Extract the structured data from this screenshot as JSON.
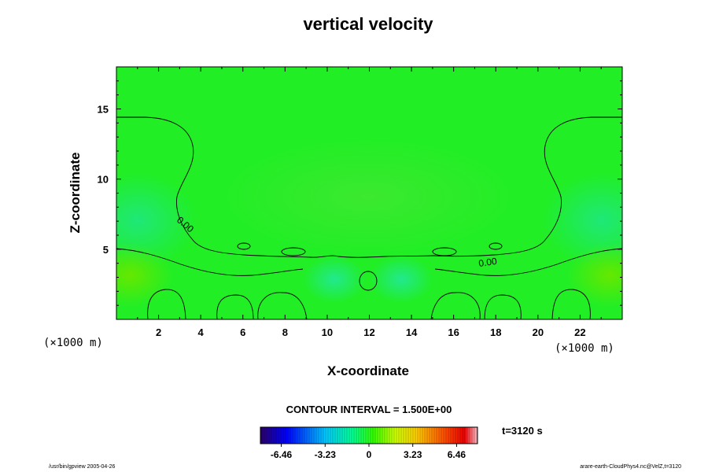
{
  "chart_data": {
    "type": "heatmap",
    "title": "vertical velocity",
    "xlabel": "X-coordinate",
    "ylabel": "Z-coordinate",
    "x_unit": "(×1000 m)",
    "y_unit": "(×1000 m)",
    "xlim": [
      0,
      24
    ],
    "ylim": [
      0,
      18
    ],
    "x_ticks": [
      2,
      4,
      6,
      8,
      10,
      12,
      14,
      16,
      18,
      20,
      22
    ],
    "y_ticks": [
      5,
      10,
      15
    ],
    "contour_interval_text": "CONTOUR INTERVAL = 1.500E+00",
    "contour_labels": [
      "0.00",
      "0.00"
    ],
    "colorbar": {
      "range": [
        -8.0,
        8.0
      ],
      "tick_values": [
        -6.46,
        -3.23,
        0,
        3.23,
        6.46
      ],
      "tick_labels": [
        "-6.46",
        "-3.23",
        "0",
        "3.23",
        "6.46"
      ]
    },
    "time_label": "t=3120 s",
    "footer_left": "/usr/bin/gpview 2005-04-26",
    "footer_right": "arare-earth-CloudPhys4.nc@VelZ,t=3120"
  }
}
